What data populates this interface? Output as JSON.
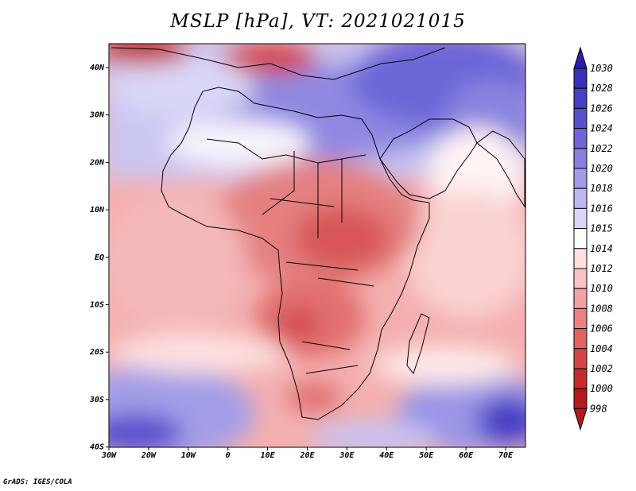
{
  "title": "MSLP [hPa], VT: 2021021015",
  "credit": "GrADS: IGES/COLA",
  "map": {
    "lon_range": [
      -30,
      75
    ],
    "lat_range": [
      -40,
      45
    ],
    "x_ticks": [
      "30W",
      "20W",
      "10W",
      "0",
      "10E",
      "20E",
      "30E",
      "40E",
      "50E",
      "60E",
      "70E"
    ],
    "y_ticks": [
      "40N",
      "30N",
      "20N",
      "10N",
      "EQ",
      "10S",
      "20S",
      "30S",
      "40S"
    ]
  },
  "colorbar": {
    "levels": [
      "1030",
      "1028",
      "1026",
      "1024",
      "1022",
      "1020",
      "1018",
      "1016",
      "1015",
      "1014",
      "1012",
      "1010",
      "1008",
      "1006",
      "1004",
      "1002",
      "1000",
      "998"
    ],
    "colors": [
      "#2b1fa8",
      "#3b2fb9",
      "#4a3ec4",
      "#5a50cd",
      "#6e66d6",
      "#8780df",
      "#a19ce8",
      "#bdb9f0",
      "#d9d7f7",
      "#ffffff",
      "#fde0e0",
      "#f9c3c3",
      "#f2a2a2",
      "#ea8282",
      "#e06262",
      "#d44646",
      "#c52d2d",
      "#b31b1b"
    ]
  }
}
